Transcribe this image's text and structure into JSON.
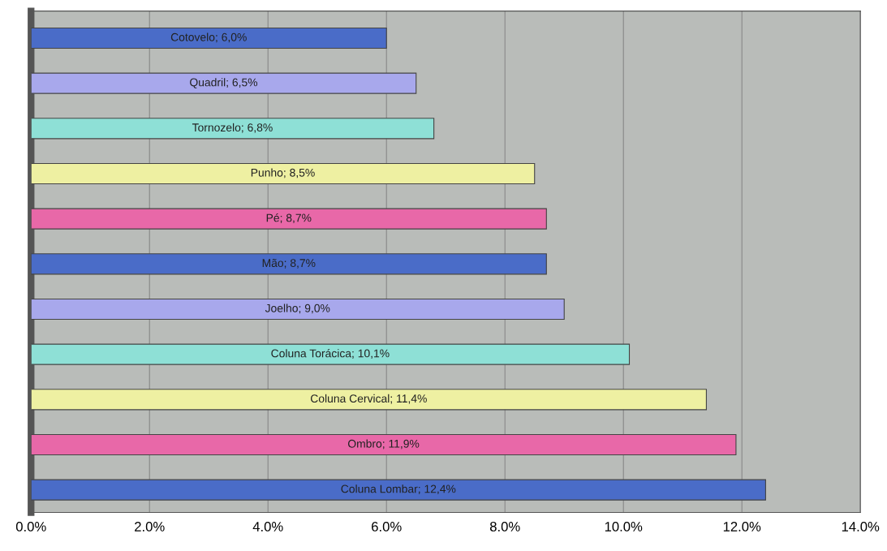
{
  "chart_data": {
    "type": "bar",
    "orientation": "horizontal",
    "categories": [
      null,
      null,
      null,
      null,
      null,
      null,
      null,
      null,
      null,
      null,
      null
    ],
    "values": [
      6.0,
      6.5,
      6.8,
      8.5,
      8.7,
      8.7,
      9.0,
      10.1,
      11.4,
      11.9,
      12.4
    ],
    "value_labels": [
      "Cotovelo; 6,0%",
      "Quadril; 6,5%",
      "Tornozelo; 6,8%",
      "Punho; 8,5%",
      "Pé; 8,7%",
      "Mão; 8,7%",
      "Joelho; 9,0%",
      "Coluna Torácica; 10,1%",
      "Coluna Cervical; 11,4%",
      "Ombro; 11,9%",
      "Coluna Lombar; 12,4%"
    ],
    "colors": [
      "#4a6cc8",
      "#a8a8ec",
      "#8ee0d6",
      "#eef0a2",
      "#e868a8",
      "#4a6cc8",
      "#a8a8ec",
      "#8ee0d6",
      "#eef0a2",
      "#e868a8",
      "#4a6cc8"
    ],
    "xlim": [
      0,
      14
    ],
    "xticks": [
      {
        "value": 0,
        "label": "0.0%"
      },
      {
        "value": 2,
        "label": "2.0%"
      },
      {
        "value": 4,
        "label": "4.0%"
      },
      {
        "value": 6,
        "label": "6.0%"
      },
      {
        "value": 8,
        "label": "8.0%"
      },
      {
        "value": 10,
        "label": "10.0%"
      },
      {
        "value": 12,
        "label": "12.0%"
      },
      {
        "value": 14,
        "label": "14.0%"
      }
    ],
    "grid": "x",
    "tick_labels": "x"
  }
}
